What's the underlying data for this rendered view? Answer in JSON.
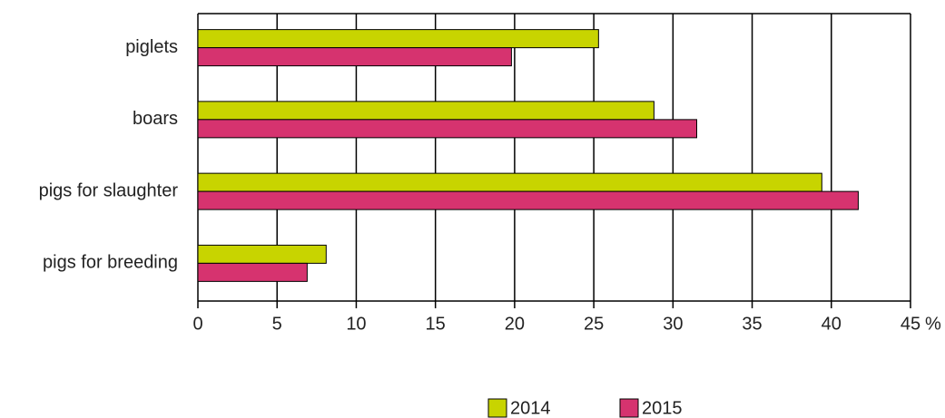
{
  "chart_data": {
    "type": "hbar",
    "categories": [
      "piglets",
      "boars",
      "pigs for slaughter",
      "pigs for breeding"
    ],
    "series": [
      {
        "name": "2014",
        "color": "#c8d400",
        "values": [
          25.3,
          28.8,
          39.4,
          8.1
        ]
      },
      {
        "name": "2015",
        "color": "#d6336f",
        "values": [
          19.8,
          31.5,
          41.7,
          6.9
        ]
      }
    ],
    "xlim": [
      0,
      45
    ],
    "xticks": [
      0,
      5,
      10,
      15,
      20,
      25,
      30,
      35,
      40,
      45
    ],
    "x_label": "%",
    "grid": true,
    "legend": "bottom"
  }
}
